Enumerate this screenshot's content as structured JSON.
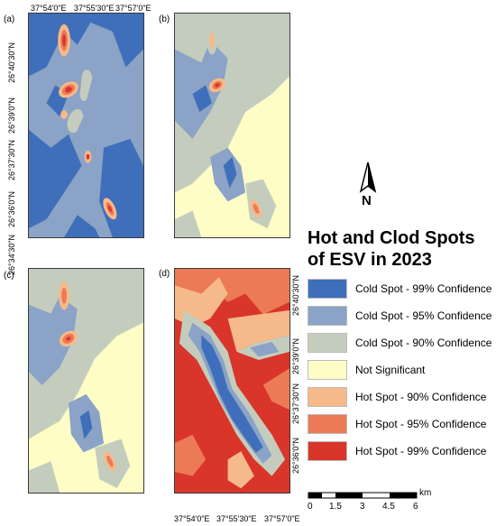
{
  "panels": [
    {
      "label": "(a)"
    },
    {
      "label": "(b)"
    },
    {
      "label": "(c)"
    },
    {
      "label": "(d)"
    }
  ],
  "top_coords": [
    "37°54'0\"E",
    "37°55'30\"E",
    "37°57'0\"E"
  ],
  "left_coords": [
    "26°40'30\"N",
    "26°39'0\"N",
    "26°37'30\"N",
    "26°36'0\"N",
    "26°34'30\"N"
  ],
  "bottom_coords": [
    "37°54'0\"E",
    "37°55'30\"E",
    "37°57'0\"E"
  ],
  "right_coords": [
    "26°40'30\"N",
    "26°39'0\"N",
    "26°37'30\"N",
    "26°36'0\"N"
  ],
  "north_label": "N",
  "legend": {
    "title_line1": "Hot and Clod Spots",
    "title_line2": "of ESV in 2023",
    "items": [
      {
        "label": "Cold Spot - 99% Confidence",
        "color": "#3f6fba"
      },
      {
        "label": "Cold Spot - 95% Confidence",
        "color": "#8aa3c6"
      },
      {
        "label": "Cold Spot - 90% Confidence",
        "color": "#c4cdbd"
      },
      {
        "label": "Not Significant",
        "color": "#fffdc6"
      },
      {
        "label": "Hot Spot - 90% Confidence",
        "color": "#f6b98a"
      },
      {
        "label": "Hot Spot - 95% Confidence",
        "color": "#ec7a56"
      },
      {
        "label": "Hot Spot - 99% Confidence",
        "color": "#d9352a"
      }
    ]
  },
  "scale_bar": {
    "labels": [
      "0",
      "1.5",
      "3",
      "4.5",
      "6"
    ],
    "unit": "km"
  }
}
